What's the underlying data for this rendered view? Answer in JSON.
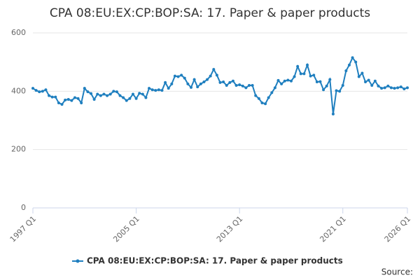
{
  "chart_data": {
    "type": "line",
    "title": "CPA 08:EU:EX:CP:BOP:SA: 17. Paper & paper products",
    "source": "Source:",
    "categories": [
      "1997 Q1",
      null,
      null,
      null,
      null,
      null,
      null,
      null,
      null,
      null,
      null,
      null,
      null,
      null,
      null,
      null,
      null,
      null,
      null,
      null,
      null,
      null,
      null,
      null,
      null,
      null,
      null,
      null,
      null,
      null,
      null,
      null,
      "2005 Q1",
      null,
      null,
      null,
      null,
      null,
      null,
      null,
      null,
      null,
      null,
      null,
      null,
      null,
      null,
      null,
      null,
      null,
      null,
      null,
      null,
      null,
      null,
      null,
      null,
      null,
      null,
      null,
      null,
      null,
      null,
      null,
      "2013 Q1",
      null,
      null,
      null,
      null,
      null,
      null,
      null,
      null,
      null,
      null,
      null,
      null,
      null,
      null,
      null,
      null,
      null,
      null,
      null,
      null,
      null,
      null,
      null,
      null,
      null,
      null,
      null,
      null,
      null,
      null,
      null,
      "2021 Q1",
      null,
      null,
      null,
      null,
      null,
      null,
      null,
      null,
      null,
      null,
      null,
      null,
      null,
      null,
      null,
      null,
      null,
      null,
      null,
      "2026 Q1"
    ],
    "series": [
      {
        "name": "CPA 08:EU:EX:CP:BOP:SA: 17. Paper & paper products",
        "color": "#1f7fbf",
        "values": [
          410,
          403,
          398,
          400,
          405,
          385,
          380,
          380,
          360,
          355,
          370,
          372,
          368,
          378,
          375,
          360,
          410,
          398,
          392,
          372,
          390,
          385,
          390,
          385,
          390,
          400,
          398,
          385,
          378,
          368,
          375,
          390,
          375,
          393,
          390,
          378,
          410,
          405,
          403,
          405,
          403,
          430,
          410,
          425,
          452,
          450,
          455,
          445,
          425,
          413,
          440,
          415,
          425,
          432,
          440,
          452,
          475,
          455,
          430,
          432,
          420,
          430,
          435,
          420,
          422,
          418,
          412,
          420,
          420,
          385,
          375,
          360,
          357,
          378,
          395,
          412,
          437,
          425,
          435,
          438,
          435,
          450,
          485,
          460,
          460,
          490,
          452,
          455,
          432,
          433,
          405,
          418,
          440,
          322,
          402,
          400,
          420,
          470,
          490,
          515,
          500,
          450,
          462,
          432,
          438,
          420,
          435,
          418,
          410,
          412,
          418,
          412,
          410,
          412,
          415,
          408,
          412
        ]
      }
    ],
    "ylim": [
      0,
      600
    ],
    "yticks": [
      0,
      200,
      400,
      600
    ],
    "grid": true
  }
}
